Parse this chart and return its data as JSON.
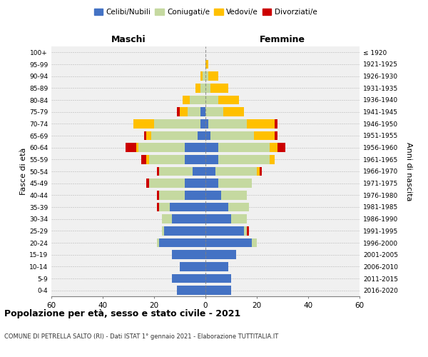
{
  "age_groups": [
    "0-4",
    "5-9",
    "10-14",
    "15-19",
    "20-24",
    "25-29",
    "30-34",
    "35-39",
    "40-44",
    "45-49",
    "50-54",
    "55-59",
    "60-64",
    "65-69",
    "70-74",
    "75-79",
    "80-84",
    "85-89",
    "90-94",
    "95-99",
    "100+"
  ],
  "birth_years": [
    "2016-2020",
    "2011-2015",
    "2006-2010",
    "2001-2005",
    "1996-2000",
    "1991-1995",
    "1986-1990",
    "1981-1985",
    "1976-1980",
    "1971-1975",
    "1966-1970",
    "1961-1965",
    "1956-1960",
    "1951-1955",
    "1946-1950",
    "1941-1945",
    "1936-1940",
    "1931-1935",
    "1926-1930",
    "1921-1925",
    "≤ 1920"
  ],
  "male": {
    "celibi": [
      11,
      13,
      10,
      13,
      18,
      16,
      13,
      14,
      8,
      8,
      5,
      8,
      8,
      3,
      2,
      2,
      0,
      0,
      0,
      0,
      0
    ],
    "coniugati": [
      0,
      0,
      0,
      0,
      1,
      1,
      4,
      4,
      10,
      14,
      13,
      14,
      18,
      18,
      18,
      5,
      6,
      2,
      1,
      0,
      0
    ],
    "vedovi": [
      0,
      0,
      0,
      0,
      0,
      0,
      0,
      0,
      0,
      0,
      0,
      1,
      1,
      2,
      8,
      3,
      3,
      2,
      1,
      0,
      0
    ],
    "divorziati": [
      0,
      0,
      0,
      0,
      0,
      0,
      0,
      1,
      1,
      1,
      1,
      2,
      4,
      1,
      0,
      1,
      0,
      0,
      0,
      0,
      0
    ]
  },
  "female": {
    "nubili": [
      10,
      10,
      9,
      12,
      18,
      15,
      10,
      9,
      6,
      5,
      4,
      5,
      5,
      2,
      1,
      0,
      0,
      0,
      0,
      0,
      0
    ],
    "coniugate": [
      0,
      0,
      0,
      0,
      2,
      1,
      6,
      8,
      10,
      13,
      16,
      20,
      20,
      17,
      15,
      7,
      5,
      2,
      1,
      0,
      0
    ],
    "vedove": [
      0,
      0,
      0,
      0,
      0,
      0,
      0,
      0,
      0,
      0,
      1,
      2,
      3,
      8,
      11,
      8,
      8,
      7,
      4,
      1,
      0
    ],
    "divorziate": [
      0,
      0,
      0,
      0,
      0,
      1,
      0,
      0,
      0,
      0,
      1,
      0,
      3,
      1,
      1,
      0,
      0,
      0,
      0,
      0,
      0
    ]
  },
  "color_celibi": "#4472c4",
  "color_coniugati": "#c5d9a0",
  "color_vedovi": "#ffc000",
  "color_divorziati": "#cc0000",
  "xlim": 60,
  "title": "Popolazione per età, sesso e stato civile - 2021",
  "subtitle": "COMUNE DI PETRELLA SALTO (RI) - Dati ISTAT 1° gennaio 2021 - Elaborazione TUTTITALIA.IT",
  "ylabel_left": "Fasce di età",
  "ylabel_right": "Anni di nascita",
  "xlabel_maschi": "Maschi",
  "xlabel_femmine": "Femmine",
  "bg_color": "#f0f0f0"
}
